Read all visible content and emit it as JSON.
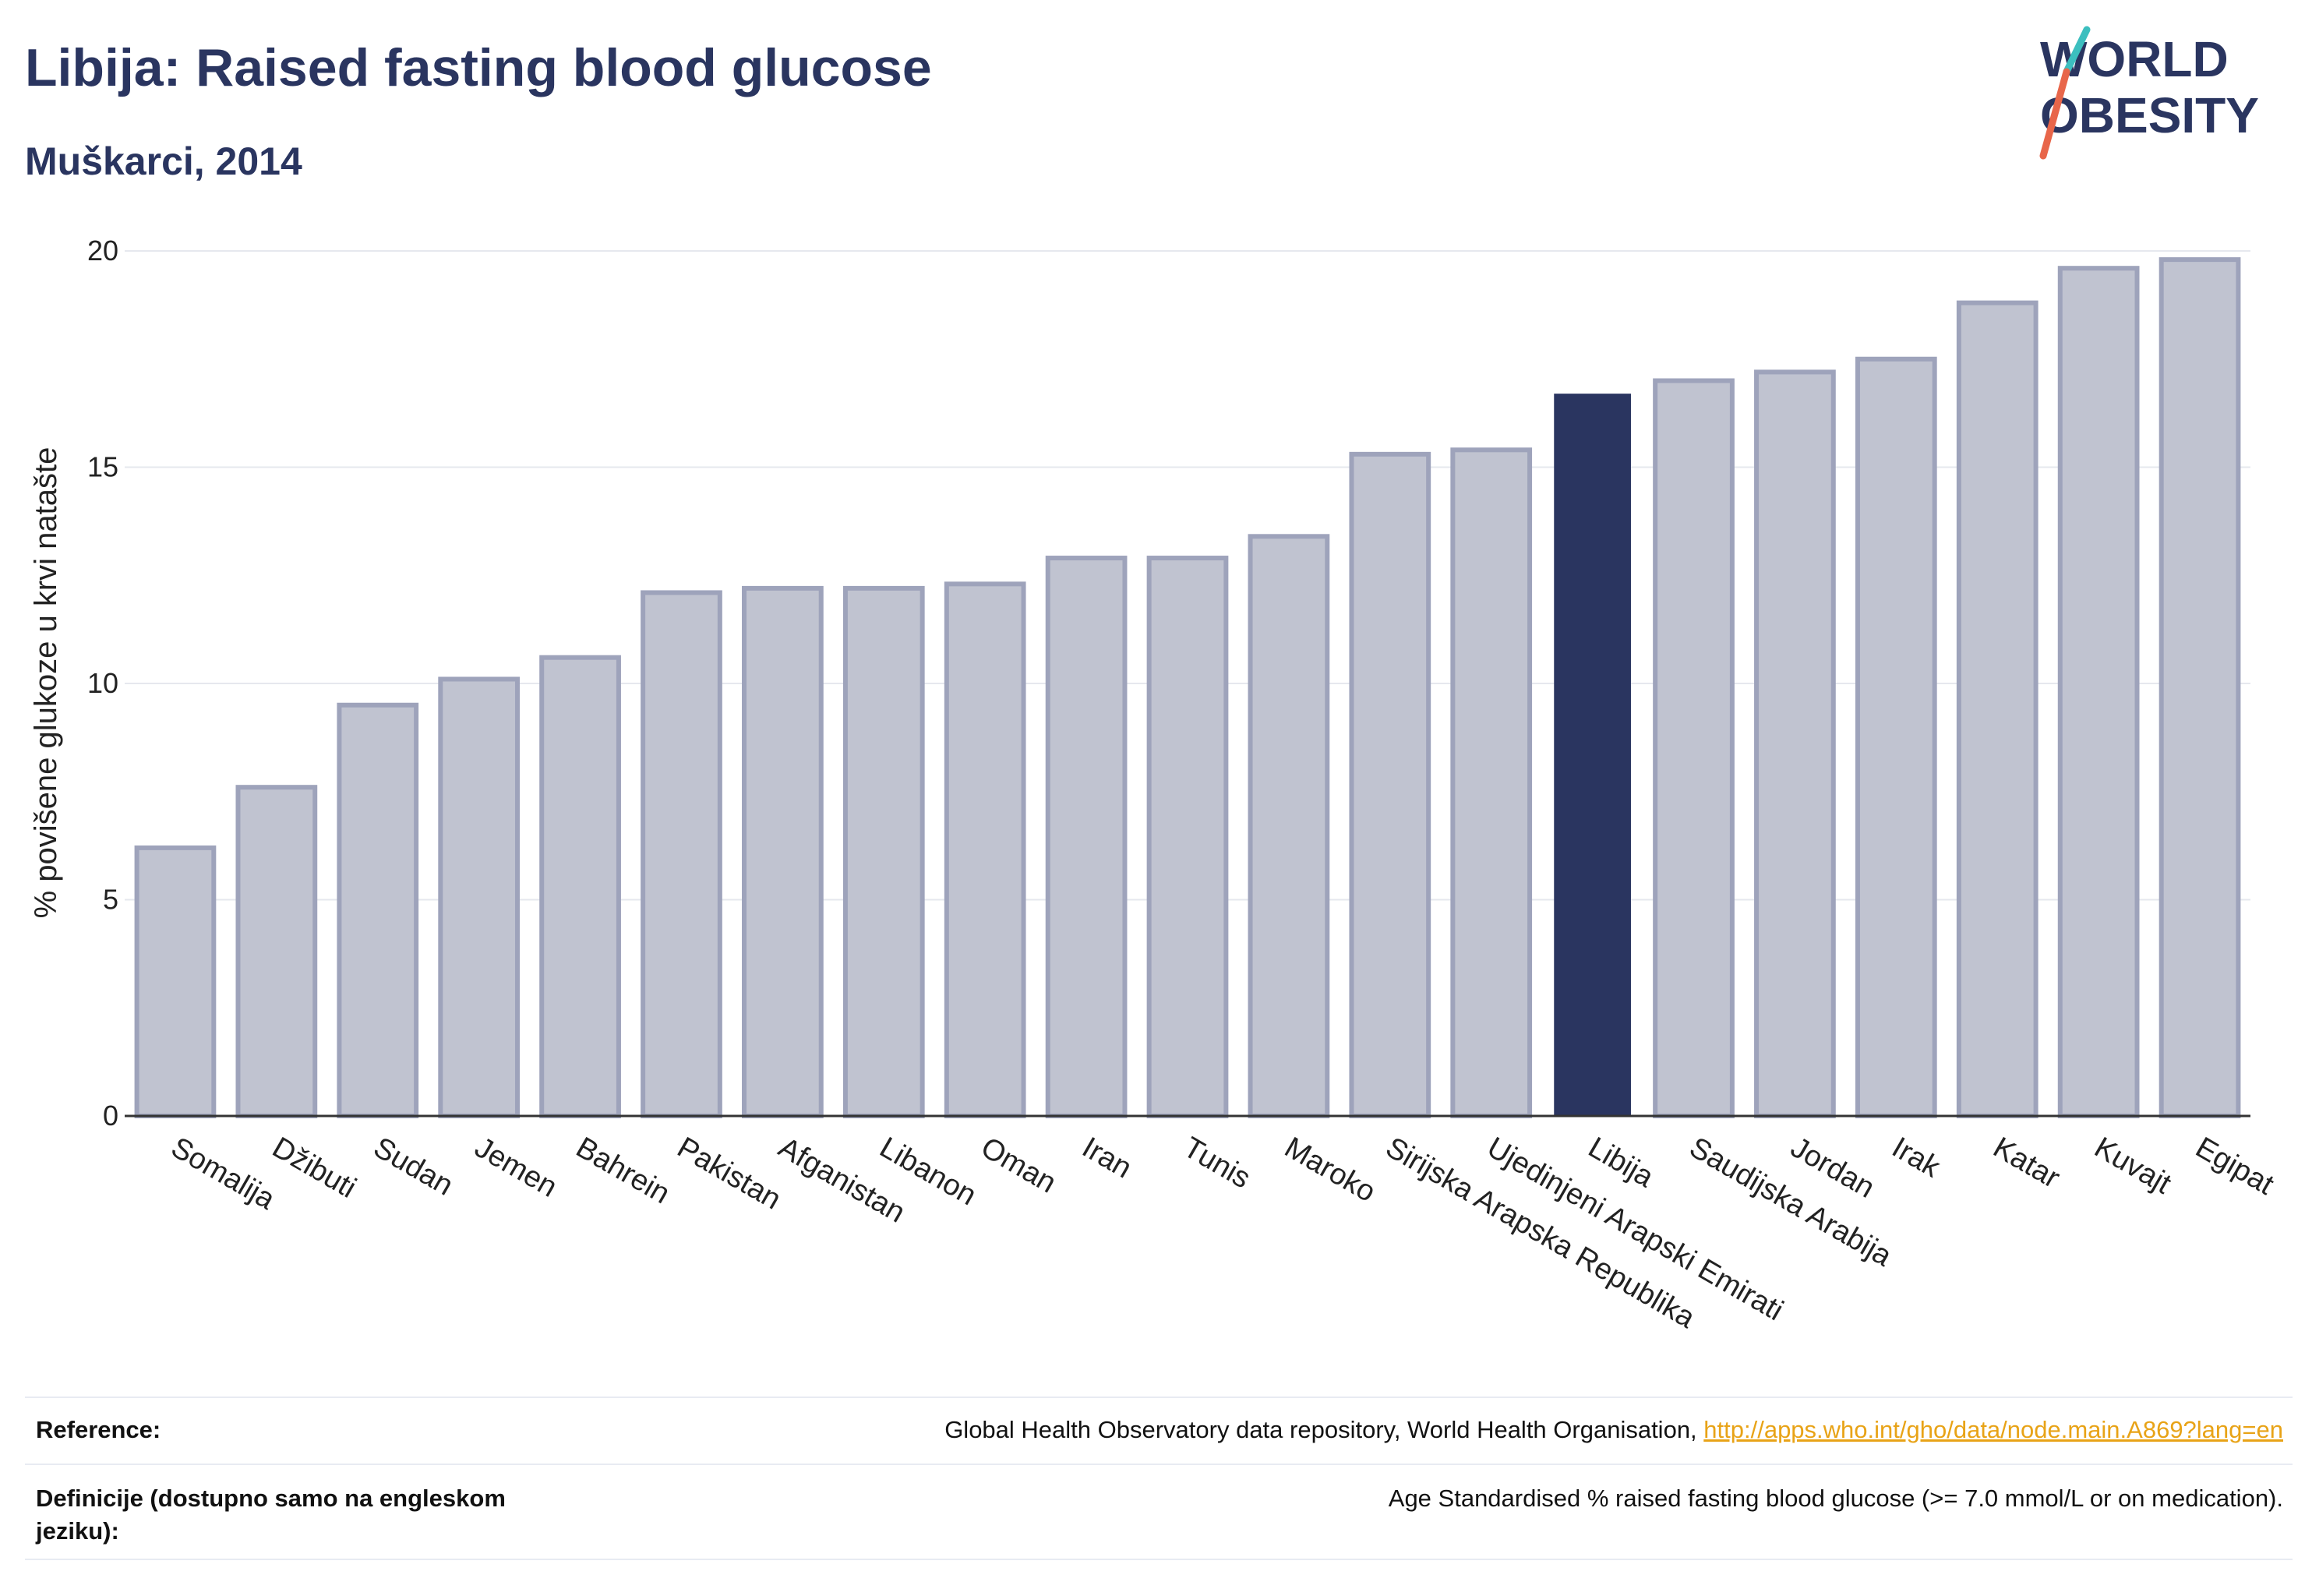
{
  "header": {
    "title": "Libija: Raised fasting blood glucose",
    "subtitle": "Muškarci, 2014"
  },
  "logo": {
    "line1": "WORLD",
    "line2": "OBESITY",
    "colors": {
      "text": "#2a3560",
      "slash_top": "#3cbfbf",
      "slash_bottom": "#e8664a"
    }
  },
  "chart_data": {
    "type": "bar",
    "ylabel": "% povišene glukoze u krvi natašte",
    "ylim": [
      0,
      20
    ],
    "yticks": [
      0,
      5,
      10,
      15,
      20
    ],
    "grid": true,
    "highlight": "Libija",
    "colors": {
      "bar": "#2a3560",
      "highlight": "#2a3560"
    },
    "categories": [
      "Somalija",
      "Džibuti",
      "Sudan",
      "Jemen",
      "Bahrein",
      "Pakistan",
      "Afganistan",
      "Libanon",
      "Oman",
      "Iran",
      "Tunis",
      "Maroko",
      "Sirijska Arapska Republika",
      "Ujedinjeni Arapski Emirati",
      "Libija",
      "Saudijska Arabija",
      "Jordan",
      "Irak",
      "Katar",
      "Kuvajt",
      "Egipat"
    ],
    "values": [
      6.2,
      7.6,
      9.5,
      10.1,
      10.6,
      12.1,
      12.2,
      12.2,
      12.3,
      12.9,
      12.9,
      13.4,
      15.3,
      15.4,
      16.7,
      17.0,
      17.2,
      17.5,
      18.8,
      19.6,
      19.8
    ]
  },
  "footer": {
    "reference_label": "Reference:",
    "reference_text": "Global Health Observatory data repository, World Health Organisation, ",
    "reference_link": "http://apps.who.int/gho/data/node.main.A869?lang=en",
    "definition_label": "Definicije (dostupno samo na engleskom jeziku):",
    "definition_text": "Age Standardised % raised fasting blood glucose (>= 7.0 mmol/L or on medication)."
  }
}
